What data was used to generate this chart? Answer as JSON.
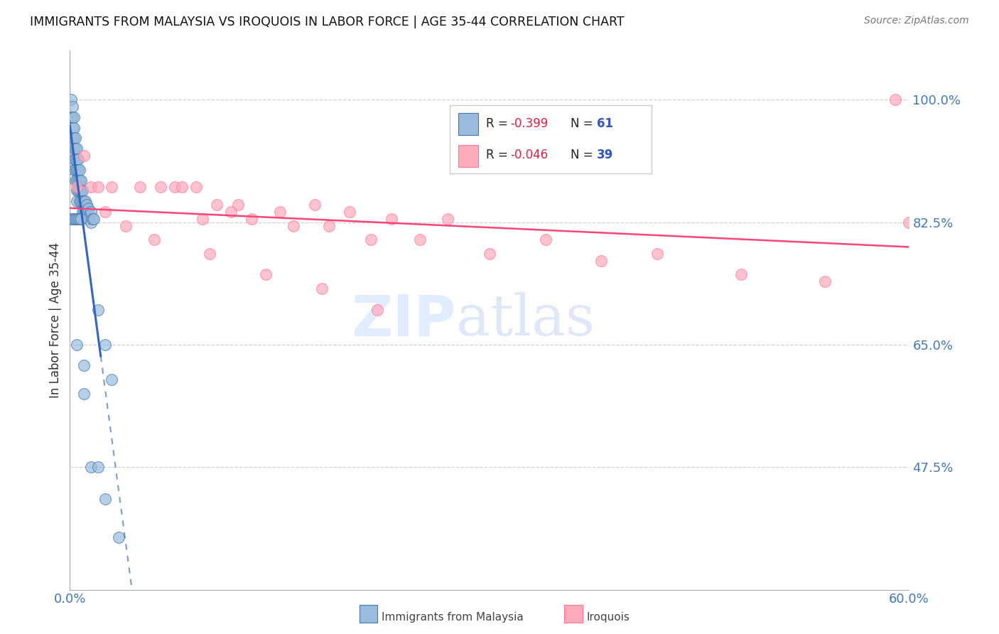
{
  "title": "IMMIGRANTS FROM MALAYSIA VS IROQUOIS IN LABOR FORCE | AGE 35-44 CORRELATION CHART",
  "source": "Source: ZipAtlas.com",
  "ylabel": "In Labor Force | Age 35-44",
  "xlim": [
    0.0,
    0.6
  ],
  "ylim": [
    0.3,
    1.07
  ],
  "yticks": [
    0.475,
    0.65,
    0.825,
    1.0
  ],
  "ytick_labels": [
    "47.5%",
    "65.0%",
    "82.5%",
    "100.0%"
  ],
  "xtick_labels": [
    "0.0%",
    "60.0%"
  ],
  "xtick_vals": [
    0.0,
    0.6
  ],
  "legend_r1": "-0.399",
  "legend_n1": "61",
  "legend_r2": "-0.046",
  "legend_n2": "39",
  "blue_fill": "#99BBDD",
  "blue_edge": "#4477AA",
  "pink_fill": "#FFAABB",
  "pink_edge": "#FF7799",
  "trendline_blue_color": "#3366BB",
  "trendline_pink_color": "#FF4477",
  "axis_label_color": "#4477BB",
  "grid_color": "#CCCCCC",
  "watermark_color": "#DDEEFF",
  "blue_scatter_x": [
    0.001,
    0.001,
    0.002,
    0.002,
    0.002,
    0.002,
    0.003,
    0.003,
    0.003,
    0.003,
    0.003,
    0.003,
    0.004,
    0.004,
    0.004,
    0.004,
    0.004,
    0.005,
    0.005,
    0.005,
    0.005,
    0.005,
    0.005,
    0.006,
    0.006,
    0.006,
    0.006,
    0.007,
    0.007,
    0.007,
    0.007,
    0.008,
    0.008,
    0.008,
    0.009,
    0.009,
    0.009,
    0.01,
    0.01,
    0.011,
    0.011,
    0.012,
    0.012,
    0.013,
    0.013,
    0.014,
    0.015,
    0.015,
    0.016,
    0.017,
    0.001,
    0.002,
    0.003,
    0.004,
    0.005,
    0.006,
    0.007,
    0.008,
    0.02,
    0.025,
    0.03
  ],
  "blue_scatter_y": [
    1.0,
    0.975,
    0.99,
    0.975,
    0.96,
    0.945,
    0.975,
    0.96,
    0.945,
    0.93,
    0.915,
    0.9,
    0.945,
    0.93,
    0.915,
    0.9,
    0.885,
    0.93,
    0.915,
    0.9,
    0.885,
    0.87,
    0.855,
    0.915,
    0.9,
    0.885,
    0.87,
    0.9,
    0.885,
    0.87,
    0.855,
    0.885,
    0.87,
    0.855,
    0.87,
    0.855,
    0.84,
    0.855,
    0.84,
    0.855,
    0.84,
    0.85,
    0.835,
    0.845,
    0.83,
    0.835,
    0.84,
    0.825,
    0.83,
    0.83,
    0.83,
    0.83,
    0.83,
    0.83,
    0.83,
    0.83,
    0.83,
    0.83,
    0.7,
    0.65,
    0.6
  ],
  "blue_outlier_x": [
    0.005,
    0.01,
    0.01,
    0.015,
    0.02,
    0.025,
    0.035
  ],
  "blue_outlier_y": [
    0.65,
    0.62,
    0.58,
    0.475,
    0.475,
    0.43,
    0.375
  ],
  "pink_scatter_x": [
    0.005,
    0.015,
    0.02,
    0.03,
    0.05,
    0.065,
    0.075,
    0.08,
    0.09,
    0.095,
    0.105,
    0.115,
    0.12,
    0.13,
    0.15,
    0.16,
    0.175,
    0.185,
    0.2,
    0.215,
    0.23,
    0.25,
    0.27,
    0.3,
    0.34,
    0.38,
    0.42,
    0.48,
    0.54,
    0.59,
    0.01,
    0.025,
    0.04,
    0.06,
    0.1,
    0.14,
    0.18,
    0.22,
    0.6
  ],
  "pink_scatter_y": [
    0.875,
    0.875,
    0.875,
    0.875,
    0.875,
    0.875,
    0.875,
    0.875,
    0.875,
    0.83,
    0.85,
    0.84,
    0.85,
    0.83,
    0.84,
    0.82,
    0.85,
    0.82,
    0.84,
    0.8,
    0.83,
    0.8,
    0.83,
    0.78,
    0.8,
    0.77,
    0.78,
    0.75,
    0.74,
    1.0,
    0.92,
    0.84,
    0.82,
    0.8,
    0.78,
    0.75,
    0.73,
    0.7,
    0.825
  ],
  "trendline_blue_x0": 0.0,
  "trendline_blue_x1": 0.022,
  "trendline_blue_y0": 0.9,
  "trendline_blue_y1": 0.56,
  "trendline_blue_dash_x0": 0.022,
  "trendline_blue_dash_x1": 0.5,
  "trendline_pink_x0": 0.0,
  "trendline_pink_x1": 0.6,
  "trendline_pink_y0": 0.86,
  "trendline_pink_y1": 0.825
}
